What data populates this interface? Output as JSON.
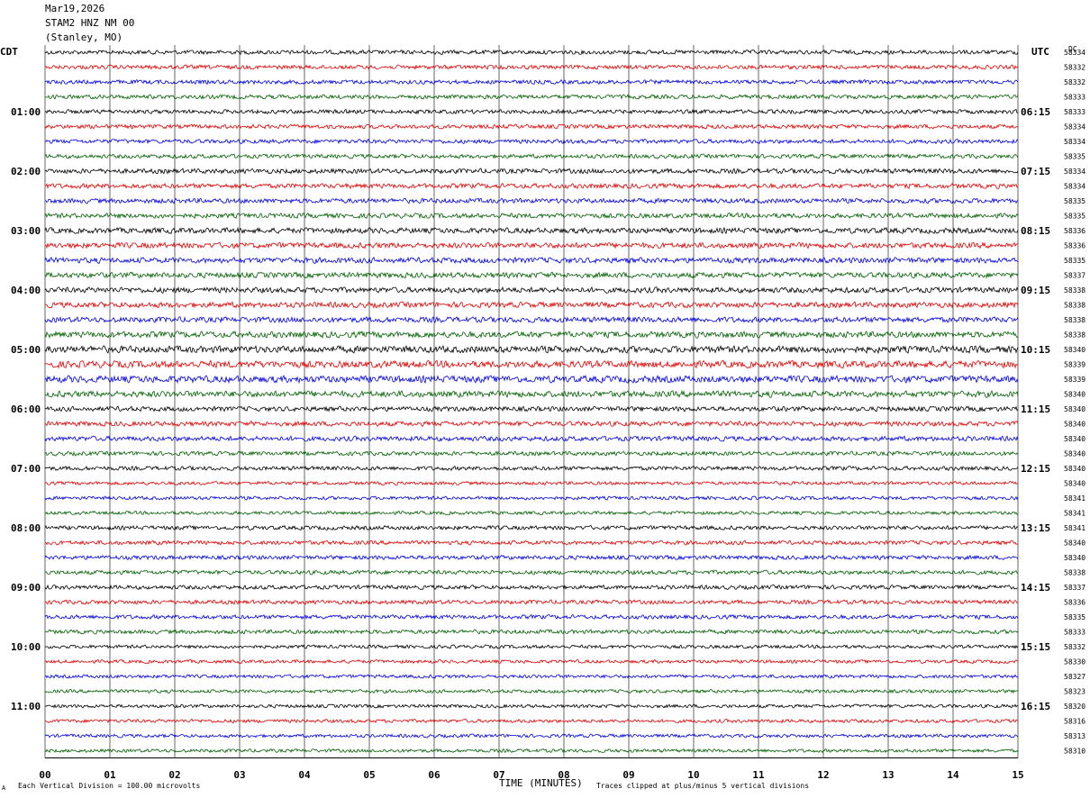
{
  "header": {
    "date": "Mar19,2026",
    "station": "STAM2 HNZ NM 00",
    "location": "(Stanley, MO)"
  },
  "left_tz": "CDT",
  "right_tz": "UTC",
  "dc_label": "DC",
  "footer": {
    "scale": "Each Vertical Division =  100.00 microvolts",
    "clip_note": "Traces clipped at plus/minus 5 vertical divisions",
    "corner_mark": "A"
  },
  "colors": {
    "trace_cycle": [
      "#000000",
      "#e00000",
      "#0000e0",
      "#006000"
    ],
    "gridline": "#000000",
    "background": "#ffffff"
  },
  "chart_data": {
    "type": "line",
    "title": "",
    "xlabel": "TIME (MINUTES)",
    "ylabel": "",
    "x_ticks": [
      "00",
      "01",
      "02",
      "03",
      "04",
      "05",
      "06",
      "07",
      "08",
      "09",
      "10",
      "11",
      "12",
      "13",
      "14",
      "15"
    ],
    "xlim": [
      0,
      15
    ],
    "grid": "vertical lines every minute",
    "left_hour_labels": [
      "01:00",
      "02:00",
      "03:00",
      "04:00",
      "05:00",
      "06:00",
      "07:00",
      "08:00",
      "09:00",
      "10:00",
      "11:00"
    ],
    "right_hour_labels": [
      "06:15",
      "07:15",
      "08:15",
      "09:15",
      "10:15",
      "11:15",
      "12:15",
      "13:15",
      "14:15",
      "15:15",
      "16:15"
    ],
    "dc_offsets": [
      58334,
      58332,
      58332,
      58333,
      58333,
      58334,
      58334,
      58335,
      58334,
      58334,
      58335,
      58335,
      58336,
      58336,
      58335,
      58337,
      58338,
      58338,
      58338,
      58338,
      58340,
      58339,
      58339,
      58340,
      58340,
      58340,
      58340,
      58340,
      58340,
      58340,
      58341,
      58341,
      58341,
      58340,
      58340,
      58338,
      58337,
      58336,
      58335,
      58333,
      58332,
      58330,
      58327,
      58323,
      58320,
      58316,
      58313,
      58310
    ],
    "trace_count": 48,
    "minutes_per_trace": 15,
    "noise_level": [
      3,
      3,
      3,
      3,
      3,
      3,
      3,
      3,
      3.5,
      3.5,
      3.5,
      3.5,
      4,
      4,
      4,
      4,
      4,
      4,
      4,
      4.5,
      5,
      5,
      5,
      4.5,
      3.5,
      3.5,
      3.5,
      3,
      3,
      2.5,
      2.5,
      2.5,
      3,
      3,
      3,
      3,
      3,
      3,
      3,
      3,
      2.5,
      2.5,
      2.5,
      2.5,
      2.5,
      2.5,
      2.5,
      2.5
    ],
    "units": "microvolts"
  }
}
